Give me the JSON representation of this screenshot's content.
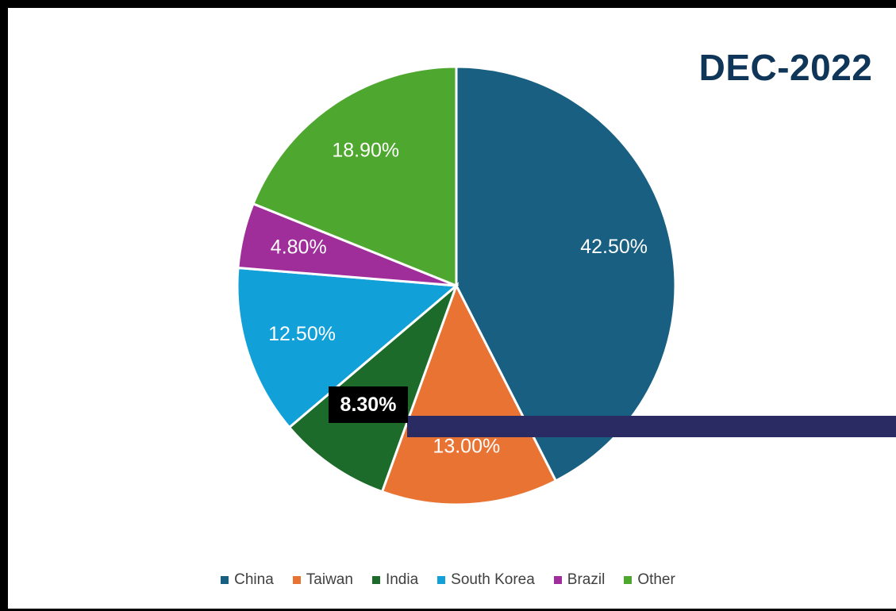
{
  "chart_data": {
    "type": "pie",
    "title": "DEC-2022",
    "categories": [
      "China",
      "Taiwan",
      "India",
      "South Korea",
      "Brazil",
      "Other"
    ],
    "values": [
      42.5,
      13.0,
      8.3,
      12.5,
      4.8,
      18.9
    ],
    "labels": [
      "42.50%",
      "13.00%",
      "8.30%",
      "12.50%",
      "4.80%",
      "18.90%"
    ],
    "colors": [
      "#185f82",
      "#e87333",
      "#1d6b2a",
      "#12a0d8",
      "#9f2e9a",
      "#4ea72e"
    ],
    "highlighted": "India",
    "legend_position": "bottom"
  }
}
